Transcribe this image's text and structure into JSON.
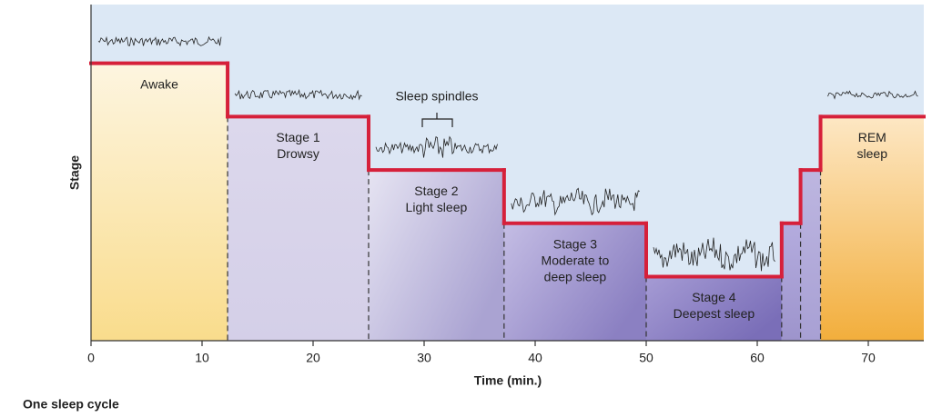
{
  "chart_data": {
    "type": "step",
    "x_label": "Time (min.)",
    "y_label": "Stage",
    "xlim": [
      0,
      75
    ],
    "xticks": [
      0,
      10,
      20,
      30,
      40,
      50,
      60,
      70
    ],
    "ylim": [
      5.2,
      -1.1
    ],
    "line_color": "#d6203a",
    "segments": [
      {
        "start": 0,
        "end": 12.3,
        "level": 0,
        "label": [
          "Awake"
        ],
        "color": [
          "#fdf5e0",
          "#f9dc8c"
        ]
      },
      {
        "start": 12.3,
        "end": 25,
        "level": 1,
        "label": [
          "Stage 1",
          "Drowsy"
        ],
        "color": [
          "#dcd8ec",
          "#d4cfe8"
        ]
      },
      {
        "start": 25,
        "end": 37.2,
        "level": 2,
        "label": [
          "Stage 2",
          "Light sleep"
        ],
        "color": [
          "#e6e4f2",
          "#aaa3d2"
        ]
      },
      {
        "start": 37.2,
        "end": 50,
        "level": 3,
        "label": [
          "Stage 3",
          "Moderate to",
          "deep sleep"
        ],
        "color": [
          "#c4bde4",
          "#8b80c2"
        ]
      },
      {
        "start": 50,
        "end": 62.2,
        "level": 4,
        "label": [
          "Stage 4",
          "Deepest sleep"
        ],
        "color": [
          "#a59bd4",
          "#7a6eb8"
        ]
      },
      {
        "start": 62.2,
        "end": 63.9,
        "level": 3,
        "label": null,
        "color": [
          "#b4acde",
          "#9d94cc"
        ]
      },
      {
        "start": 63.9,
        "end": 65.7,
        "level": 2,
        "label": null,
        "color": [
          "#bdb6e0",
          "#a8a0d4"
        ]
      },
      {
        "start": 65.7,
        "end": 75,
        "level": 1,
        "label": [
          "REM",
          "sleep"
        ],
        "color": [
          "#fde7c4",
          "#f2ae3c"
        ]
      }
    ],
    "annotation": "Sleep spindles",
    "footer": "One sleep cycle"
  }
}
